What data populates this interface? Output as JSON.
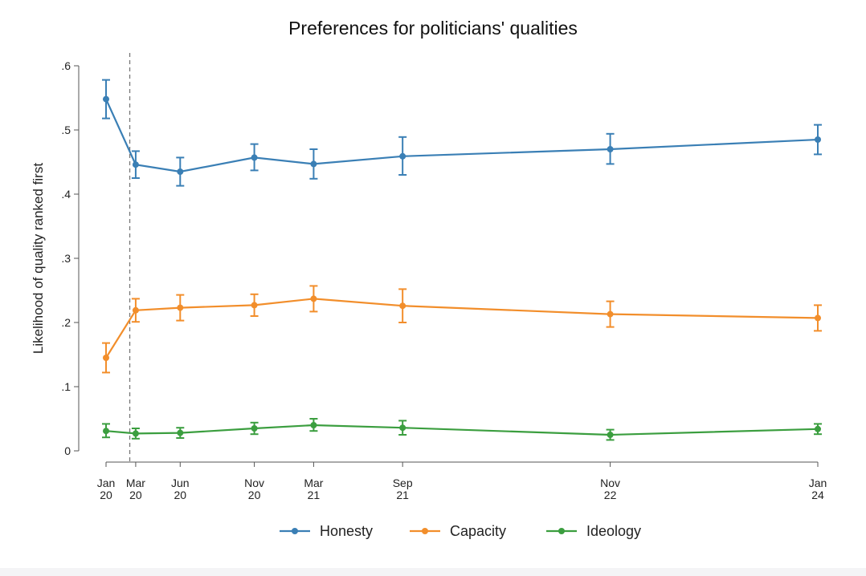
{
  "chart_data": {
    "type": "line",
    "title": "Preferences for politicians' qualities",
    "xlabel": "",
    "ylabel": "Likelihood of quality ranked first",
    "ylim": [
      0,
      0.6
    ],
    "yticks": [
      0,
      0.1,
      0.2,
      0.3,
      0.4,
      0.5,
      0.6
    ],
    "ytick_labels": [
      "0",
      ".1",
      ".2",
      ".3",
      ".4",
      ".5",
      ".6"
    ],
    "x_months": [
      0,
      2,
      5,
      10,
      14,
      20,
      34,
      48
    ],
    "x_labels": [
      [
        "Jan",
        "20"
      ],
      [
        "Mar",
        "20"
      ],
      [
        "Jun",
        "20"
      ],
      [
        "Nov",
        "20"
      ],
      [
        "Mar",
        "21"
      ],
      [
        "Sep",
        "21"
      ],
      [
        "Nov",
        "22"
      ],
      [
        "Jan",
        "24"
      ]
    ],
    "xlim": [
      0,
      48
    ],
    "vline_month": 1.6,
    "legend_position": "bottom-center",
    "series": [
      {
        "name": "Honesty",
        "color": "#3a7fb5",
        "values": [
          0.548,
          0.446,
          0.435,
          0.457,
          0.447,
          0.459,
          0.47,
          0.485
        ],
        "ci_low": [
          0.518,
          0.425,
          0.413,
          0.437,
          0.424,
          0.43,
          0.447,
          0.462
        ],
        "ci_high": [
          0.578,
          0.467,
          0.457,
          0.478,
          0.47,
          0.489,
          0.494,
          0.508
        ]
      },
      {
        "name": "Capacity",
        "color": "#f28e2b",
        "values": [
          0.145,
          0.219,
          0.223,
          0.227,
          0.237,
          0.226,
          0.213,
          0.207
        ],
        "ci_low": [
          0.122,
          0.201,
          0.203,
          0.21,
          0.217,
          0.2,
          0.193,
          0.187
        ],
        "ci_high": [
          0.168,
          0.237,
          0.243,
          0.244,
          0.257,
          0.252,
          0.233,
          0.227
        ]
      },
      {
        "name": "Ideology",
        "color": "#3b9e3f",
        "values": [
          0.031,
          0.027,
          0.028,
          0.035,
          0.04,
          0.036,
          0.025,
          0.034
        ],
        "ci_low": [
          0.021,
          0.019,
          0.02,
          0.026,
          0.031,
          0.025,
          0.017,
          0.026
        ],
        "ci_high": [
          0.042,
          0.035,
          0.036,
          0.044,
          0.05,
          0.047,
          0.033,
          0.042
        ]
      }
    ]
  }
}
